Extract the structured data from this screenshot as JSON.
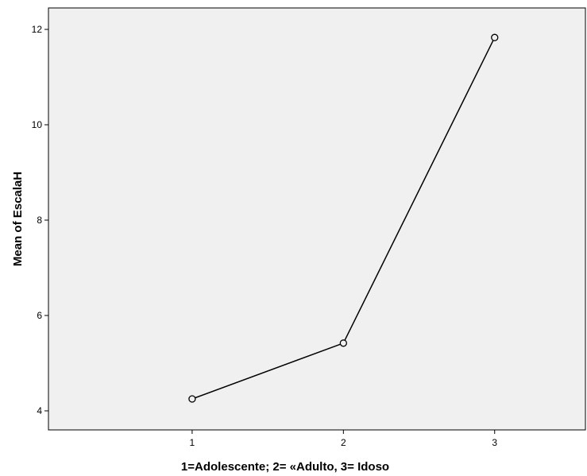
{
  "chart_data": {
    "type": "line",
    "title": "",
    "xlabel": "1=Adolescente; 2= «Adulto, 3= Idoso",
    "ylabel": "Mean of EscalaH",
    "categories": [
      "1",
      "2",
      "3"
    ],
    "values": [
      4.25,
      5.42,
      11.83
    ],
    "yticks": [
      4,
      6,
      8,
      10,
      12
    ],
    "ylim": [
      3.6,
      12.45
    ],
    "xlim": [
      0.05,
      3.6
    ],
    "grid": false,
    "legend": "none",
    "colors": {
      "plot_background": "#f0f0f0",
      "line": "#000000",
      "marker_stroke": "#000000",
      "marker_fill": "#f0f0f0",
      "axis": "#000000"
    },
    "marker": "open-circle-icon"
  }
}
